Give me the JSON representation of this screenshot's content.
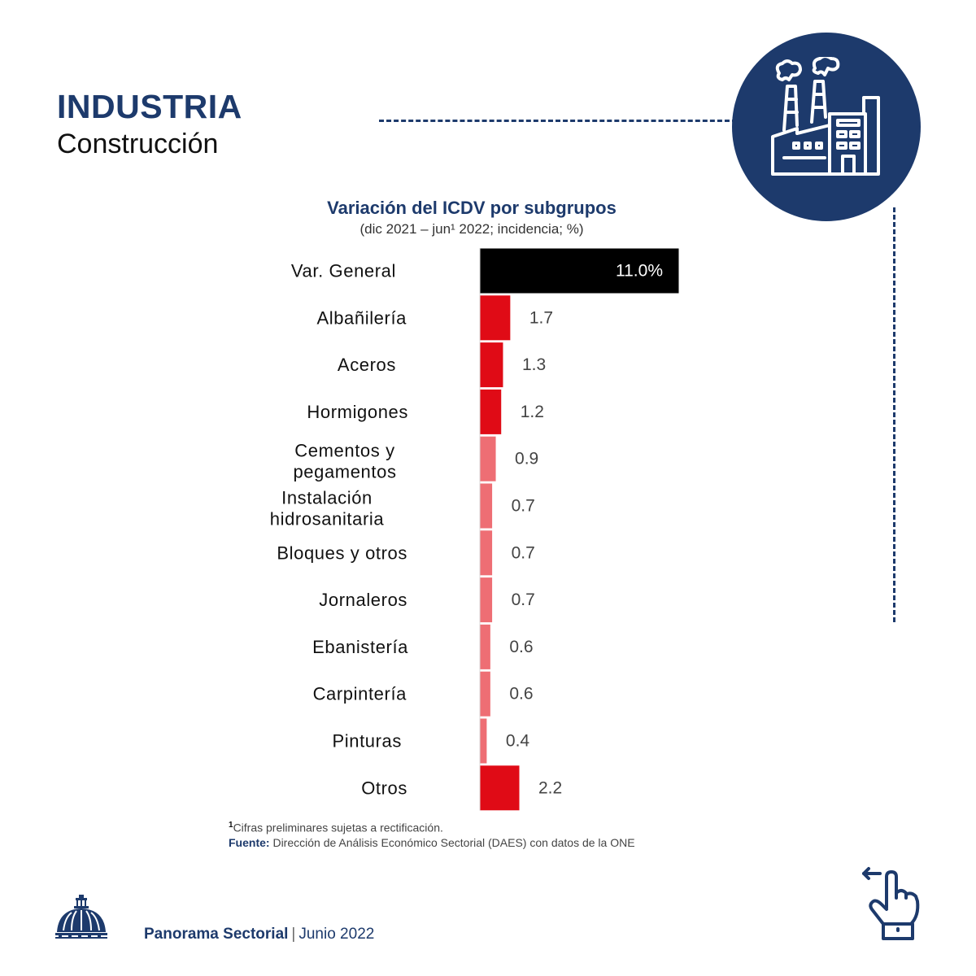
{
  "header": {
    "title": "INDUSTRIA",
    "subtitle": "Construcción",
    "icon": "factory-icon"
  },
  "chart_data": {
    "type": "bar",
    "orientation": "horizontal",
    "title": "Variación del ICDV por subgrupos",
    "subtitle": "(dic 2021 – jun¹ 2022; incidencia; %)",
    "categories": [
      "Var. General",
      "Albañilería",
      "Aceros",
      "Hormigones",
      "Cementos y pegamentos",
      "Instalación hidrosanitaria",
      "Bloques y otros",
      "Jornaleros",
      "Ebanistería",
      "Carpintería",
      "Pinturas",
      "Otros"
    ],
    "label_lines": [
      [
        "Var. General"
      ],
      [
        "Albañilería"
      ],
      [
        "Aceros"
      ],
      [
        "Hormigones"
      ],
      [
        "Cementos y",
        "pegamentos"
      ],
      [
        "Instalación",
        "hidrosanitaria"
      ],
      [
        "Bloques y otros"
      ],
      [
        "Jornaleros"
      ],
      [
        "Ebanistería"
      ],
      [
        "Carpintería"
      ],
      [
        "Pinturas"
      ],
      [
        "Otros"
      ]
    ],
    "values": [
      11.0,
      1.7,
      1.3,
      1.2,
      0.9,
      0.7,
      0.7,
      0.7,
      0.6,
      0.6,
      0.4,
      2.2
    ],
    "value_labels": [
      "11.0%",
      "1.7",
      "1.3",
      "1.2",
      "0.9",
      "0.7",
      "0.7",
      "0.7",
      "0.6",
      "0.6",
      "0.4",
      "2.2"
    ],
    "bar_colors": [
      "#000000",
      "#e00b16",
      "#e00b16",
      "#e00b16",
      "#ee6e74",
      "#ee6e74",
      "#ee6e74",
      "#ee6e74",
      "#ee6e74",
      "#ee6e74",
      "#ee6e74",
      "#e00b16"
    ],
    "xlim": [
      0,
      11.0
    ],
    "grid": false,
    "legend": "none",
    "xlabel": "",
    "ylabel": ""
  },
  "notes": {
    "footnote_mark": "1",
    "footnote": "Cifras preliminares sujetas a rectificación.",
    "source_label": "Fuente:",
    "source_text": "Dirección de Análisis Económico Sectorial (DAES) con datos de la ONE"
  },
  "footer": {
    "brand": "Panorama Sectorial",
    "separator": "|",
    "date": "Junio 2022",
    "logo": "dome-logo",
    "swipe_icon": "swipe-left-hand-icon"
  },
  "colors": {
    "primary": "#1d3a6c",
    "highlight_red": "#e00b16",
    "light_red": "#ee6e74",
    "total_bar": "#000000"
  }
}
